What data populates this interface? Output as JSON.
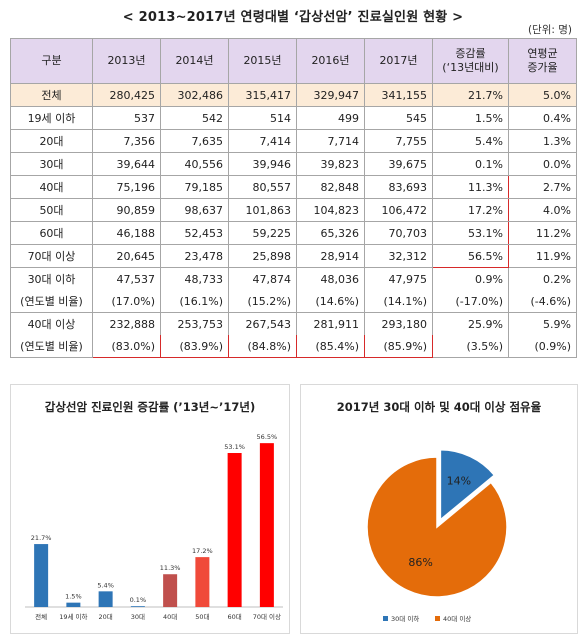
{
  "page": {
    "title": "< 2013~2017년 연령대별 ‘갑상선암’ 진료실인원 현황 >",
    "unit": "(단위: 명)"
  },
  "table": {
    "headers": [
      "구분",
      "2013년",
      "2014년",
      "2015년",
      "2016년",
      "2017년",
      "증감률\n(‘13년대비)",
      "연평균\n증가율"
    ],
    "rows": [
      {
        "label": "전체",
        "values": [
          "280,425",
          "302,486",
          "315,417",
          "329,947",
          "341,155"
        ],
        "change": "21.7%",
        "annual": "5.0%"
      },
      {
        "label": "19세 이하",
        "values": [
          "537",
          "542",
          "514",
          "499",
          "545"
        ],
        "change": "1.5%",
        "annual": "0.4%"
      },
      {
        "label": "20대",
        "values": [
          "7,356",
          "7,635",
          "7,414",
          "7,714",
          "7,755"
        ],
        "change": "5.4%",
        "annual": "1.3%"
      },
      {
        "label": "30대",
        "values": [
          "39,644",
          "40,556",
          "39,946",
          "39,823",
          "39,675"
        ],
        "change": "0.1%",
        "annual": "0.0%"
      },
      {
        "label": "40대",
        "values": [
          "75,196",
          "79,185",
          "80,557",
          "82,848",
          "83,693"
        ],
        "change": "11.3%",
        "annual": "2.7%"
      },
      {
        "label": "50대",
        "values": [
          "90,859",
          "98,637",
          "101,863",
          "104,823",
          "106,472"
        ],
        "change": "17.2%",
        "annual": "4.0%"
      },
      {
        "label": "60대",
        "values": [
          "46,188",
          "52,453",
          "59,225",
          "65,326",
          "70,703"
        ],
        "change": "53.1%",
        "annual": "11.2%"
      },
      {
        "label": "70대 이상",
        "values": [
          "20,645",
          "23,478",
          "25,898",
          "28,914",
          "32,312"
        ],
        "change": "56.5%",
        "annual": "11.9%"
      },
      {
        "label": "30대 이하",
        "values": [
          "47,537",
          "48,733",
          "47,874",
          "48,036",
          "47,975"
        ],
        "change": "0.9%",
        "annual": "0.2%"
      },
      {
        "label": "(연도별 비율)",
        "values": [
          "(17.0%)",
          "(16.1%)",
          "(15.2%)",
          "(14.6%)",
          "(14.1%)"
        ],
        "change": "(-17.0%)",
        "annual": "(-4.6%)"
      },
      {
        "label": "40대 이상",
        "values": [
          "232,888",
          "253,753",
          "267,543",
          "281,911",
          "293,180"
        ],
        "change": "25.9%",
        "annual": "5.9%"
      },
      {
        "label": "(연도별 비율)",
        "values": [
          "(83.0%)",
          "(83.9%)",
          "(84.8%)",
          "(85.4%)",
          "(85.9%)"
        ],
        "change": "(3.5%)",
        "annual": "(0.9%)"
      }
    ]
  },
  "chart_data": [
    {
      "type": "bar",
      "title": "갑상선암 진료인원 증감률 (’13년~’17년)",
      "categories": [
        "전체",
        "19세 이하",
        "20대",
        "30대",
        "40대",
        "50대",
        "60대",
        "70대 이상"
      ],
      "values": [
        21.7,
        1.5,
        5.4,
        0.1,
        11.3,
        17.2,
        53.1,
        56.5
      ],
      "labels": [
        "21.7%",
        "1.5%",
        "5.4%",
        "0.1%",
        "11.3%",
        "17.2%",
        "53.1%",
        "56.5%"
      ],
      "colors": [
        "#2e75b6",
        "#2e75b6",
        "#2e75b6",
        "#2e75b6",
        "#c0504d",
        "#f04a3a",
        "#ff0000",
        "#ff0000"
      ],
      "ylim": [
        0,
        60
      ]
    },
    {
      "type": "pie",
      "title": "2017년 30대 이하 및 40대 이상 점유율",
      "categories": [
        "30대 이하",
        "40대 이상"
      ],
      "values": [
        14,
        86
      ],
      "labels": [
        "14%",
        "86%"
      ],
      "colors": [
        "#2e75b6",
        "#e46c0a"
      ],
      "legend": "bottom"
    }
  ]
}
